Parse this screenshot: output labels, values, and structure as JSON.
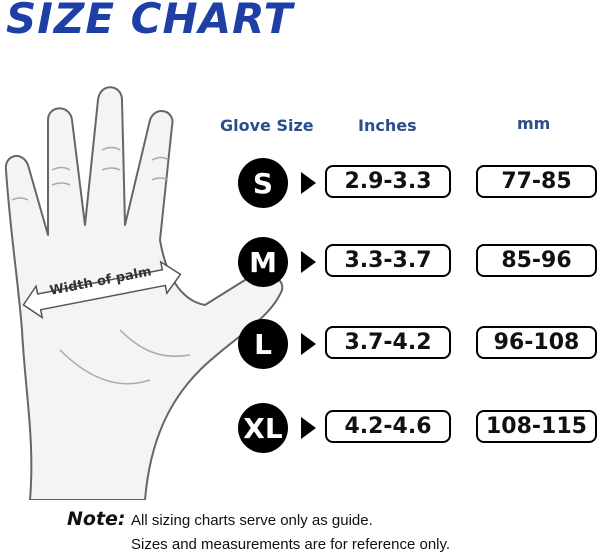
{
  "title": "SIZE CHART",
  "hand_label": "Width of palm",
  "headers": {
    "size": "Glove Size",
    "inches": "Inches",
    "mm": "mm"
  },
  "rows": [
    {
      "size": "S",
      "inches": "2.9-3.3",
      "mm": "77-85"
    },
    {
      "size": "M",
      "inches": "3.3-3.7",
      "mm": "85-96"
    },
    {
      "size": "L",
      "inches": "3.7-4.2",
      "mm": "96-108"
    },
    {
      "size": "XL",
      "inches": "4.2-4.6",
      "mm": "108-115"
    }
  ],
  "note": {
    "label": "Note:",
    "line1": "All sizing charts serve only as guide.",
    "line2": "Sizes and measurements are for reference only."
  },
  "colors": {
    "title": "#1d3fa6",
    "headers": "#2b4e8c"
  }
}
